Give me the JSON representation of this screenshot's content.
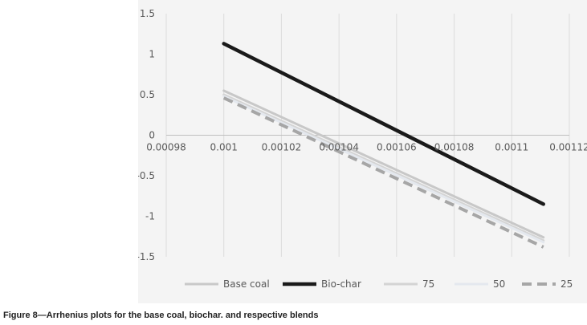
{
  "caption": "Figure 8—Arrhenius plots for the base coal, biochar. and respective blends",
  "chart_data": {
    "type": "line",
    "title": "",
    "xlabel": "",
    "ylabel": "",
    "xlim": [
      0.00098,
      0.00112
    ],
    "ylim": [
      -1.5,
      1.5
    ],
    "x_ticks": [
      0.00098,
      0.001,
      0.00102,
      0.00104,
      0.00106,
      0.00108,
      0.0011,
      0.00112
    ],
    "x_tick_labels": [
      "0.00098",
      "0.001",
      "0.00102",
      "0.00104",
      "0.00106",
      "0.00108",
      "0.0011",
      "0.00112"
    ],
    "y_ticks": [
      -1.5,
      -1,
      -0.5,
      0,
      0.5,
      1,
      1.5
    ],
    "y_tick_labels": [
      "-1.5",
      "-1",
      "-0.5",
      "0",
      "0.5",
      "1",
      "1.5"
    ],
    "grid": "vertical",
    "legend_position": "bottom",
    "series": [
      {
        "name": "Base coal",
        "color": "#c8c8c8",
        "dash": "solid",
        "width": 3,
        "x": [
          0.001,
          0.001111
        ],
        "y": [
          0.55,
          -1.26
        ]
      },
      {
        "name": "Bio-char",
        "color": "#1a1a1a",
        "dash": "solid",
        "width": 4.5,
        "x": [
          0.001,
          0.001111
        ],
        "y": [
          1.13,
          -0.85
        ]
      },
      {
        "name": "75",
        "color": "#d4d4d4",
        "dash": "solid",
        "width": 3,
        "x": [
          0.001,
          0.001111
        ],
        "y": [
          0.5,
          -1.3
        ]
      },
      {
        "name": "50",
        "color": "#e4e8ee",
        "dash": "solid",
        "width": 3,
        "x": [
          0.001,
          0.001111
        ],
        "y": [
          0.48,
          -1.32
        ]
      },
      {
        "name": "25",
        "color": "#a6a6a6",
        "dash": "dashed",
        "width": 4,
        "x": [
          0.001,
          0.001111
        ],
        "y": [
          0.46,
          -1.38
        ]
      }
    ]
  }
}
